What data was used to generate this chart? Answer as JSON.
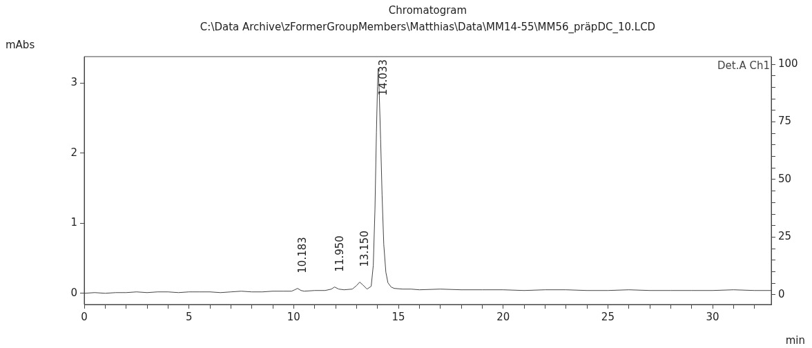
{
  "chart_data": {
    "type": "line",
    "title": "Chromatogram",
    "subtitle": "C:\\Data Archive\\zFormerGroupMembers\\Matthias\\Data\\MM14-55\\MM56_präpDC_10.LCD",
    "xlabel": "min",
    "ylabel": "mAbs",
    "legend": "top right",
    "grid": false,
    "marker": "none",
    "line_style": "solid",
    "xlim": [
      0,
      32.8
    ],
    "ylim": [
      -0.16,
      3.38
    ],
    "y2lim": [
      -4.2,
      103.3
    ],
    "xticks": [
      0,
      {
        "value": 1,
        "label": null
      },
      {
        "value": 2,
        "label": null
      },
      {
        "value": 3,
        "label": null
      },
      {
        "value": 4,
        "label": null
      },
      5,
      {
        "value": 6,
        "label": null
      },
      {
        "value": 7,
        "label": null
      },
      {
        "value": 8,
        "label": null
      },
      {
        "value": 9,
        "label": null
      },
      10,
      {
        "value": 11,
        "label": null
      },
      {
        "value": 12,
        "label": null
      },
      {
        "value": 13,
        "label": null
      },
      {
        "value": 14,
        "label": null
      },
      15,
      {
        "value": 16,
        "label": null
      },
      {
        "value": 17,
        "label": null
      },
      {
        "value": 18,
        "label": null
      },
      {
        "value": 19,
        "label": null
      },
      20,
      {
        "value": 21,
        "label": null
      },
      {
        "value": 22,
        "label": null
      },
      {
        "value": 23,
        "label": null
      },
      {
        "value": 24,
        "label": null
      },
      25,
      {
        "value": 26,
        "label": null
      },
      {
        "value": 27,
        "label": null
      },
      {
        "value": 28,
        "label": null
      },
      {
        "value": 29,
        "label": null
      },
      30,
      {
        "value": 31,
        "label": null
      },
      {
        "value": 32,
        "label": null
      }
    ],
    "yticks": [
      0,
      1,
      2,
      3
    ],
    "y2ticks": [
      0,
      {
        "value": 5,
        "label": null
      },
      {
        "value": 10,
        "label": null
      },
      {
        "value": 15,
        "label": null
      },
      {
        "value": 20,
        "label": null
      },
      25,
      {
        "value": 30,
        "label": null
      },
      {
        "value": 35,
        "label": null
      },
      {
        "value": 40,
        "label": null
      },
      {
        "value": 45,
        "label": null
      },
      50,
      {
        "value": 55,
        "label": null
      },
      {
        "value": 60,
        "label": null
      },
      {
        "value": 65,
        "label": null
      },
      {
        "value": 70,
        "label": null
      },
      75,
      {
        "value": 80,
        "label": null
      },
      {
        "value": 85,
        "label": null
      },
      {
        "value": 90,
        "label": null
      },
      {
        "value": 95,
        "label": null
      },
      100
    ],
    "annotations": [
      {
        "text": "10.183",
        "x": 10.183,
        "y": 0.07
      },
      {
        "text": "11.950",
        "x": 11.95,
        "y": 0.09
      },
      {
        "text": "13.150",
        "x": 13.15,
        "y": 0.16
      },
      {
        "text": "14.033",
        "x": 14.033,
        "y": 3.21
      }
    ],
    "series": [
      {
        "name": "Det.A Ch1",
        "color": "#444444",
        "x": [
          0,
          0.5,
          1,
          1.5,
          2,
          2.5,
          3,
          3.5,
          4,
          4.5,
          5,
          5.5,
          6,
          6.5,
          7,
          7.5,
          8,
          8.5,
          9,
          9.5,
          9.9,
          10.05,
          10.183,
          10.35,
          10.5,
          11,
          11.5,
          11.8,
          11.95,
          12.15,
          12.4,
          12.8,
          13.0,
          13.15,
          13.3,
          13.5,
          13.7,
          13.8,
          13.88,
          13.95,
          14.0,
          14.033,
          14.08,
          14.15,
          14.22,
          14.3,
          14.4,
          14.5,
          14.65,
          14.8,
          15.2,
          15.6,
          16,
          17,
          18,
          19,
          20,
          21,
          22,
          23,
          24,
          25,
          26,
          27,
          28,
          29,
          30,
          31,
          32,
          32.8
        ],
        "values": [
          0.0,
          0.01,
          0.0,
          0.01,
          0.01,
          0.02,
          0.01,
          0.02,
          0.02,
          0.01,
          0.02,
          0.02,
          0.02,
          0.01,
          0.02,
          0.03,
          0.02,
          0.02,
          0.03,
          0.03,
          0.03,
          0.05,
          0.07,
          0.04,
          0.03,
          0.04,
          0.04,
          0.06,
          0.09,
          0.06,
          0.05,
          0.06,
          0.11,
          0.16,
          0.12,
          0.06,
          0.1,
          0.4,
          1.2,
          2.3,
          2.95,
          3.21,
          2.9,
          2.2,
          1.4,
          0.7,
          0.3,
          0.15,
          0.09,
          0.07,
          0.06,
          0.06,
          0.05,
          0.06,
          0.05,
          0.05,
          0.05,
          0.04,
          0.05,
          0.05,
          0.04,
          0.04,
          0.05,
          0.04,
          0.04,
          0.04,
          0.04,
          0.05,
          0.04,
          0.04
        ]
      }
    ]
  }
}
